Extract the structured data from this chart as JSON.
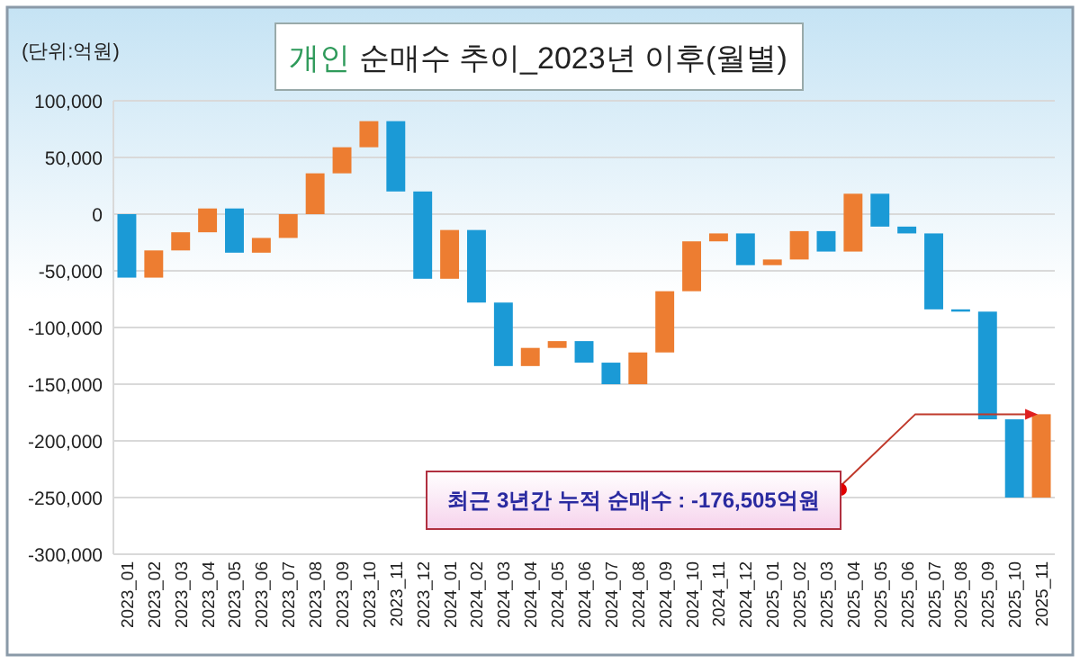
{
  "chart_data": {
    "type": "bar",
    "title": "개인 순매수 추이_2023년 이후(월별)",
    "ylabel": "(단위:억원)",
    "categories": [
      "2023_01",
      "2023_02",
      "2023_03",
      "2023_04",
      "2023_05",
      "2023_06",
      "2023_07",
      "2023_08",
      "2023_09",
      "2023_10",
      "2023_11",
      "2023_12",
      "2024_01",
      "2024_02",
      "2024_03",
      "2024_04",
      "2024_05",
      "2024_06",
      "2024_07",
      "2024_08",
      "2024_09",
      "2024_10",
      "2024_11",
      "2024_12",
      "2025_01",
      "2025_02",
      "2025_03",
      "2025_04",
      "2025_05",
      "2025_06",
      "2025_07",
      "2025_08",
      "2025_09",
      "2025_10",
      "2025_11"
    ],
    "values": [
      -56000,
      24000,
      16000,
      21000,
      -39000,
      13000,
      21000,
      36000,
      23000,
      23000,
      -62000,
      -77000,
      43000,
      -64000,
      -56000,
      16000,
      6000,
      -19000,
      -19000,
      28000,
      54000,
      44000,
      7000,
      -28000,
      5000,
      25000,
      -18000,
      51000,
      -29000,
      -6000,
      -67000,
      -2000,
      -95000,
      -69000,
      73500
    ],
    "base": [
      0,
      -56000,
      -32000,
      -16000,
      5000,
      -34000,
      -21000,
      0,
      36000,
      59000,
      82000,
      20000,
      -57000,
      -14000,
      -78000,
      -134000,
      -118000,
      -112000,
      -131000,
      -150000,
      -122000,
      -68000,
      -24000,
      -17000,
      -45000,
      -40000,
      -15000,
      -33000,
      18000,
      -11000,
      -17000,
      -84000,
      -86000,
      -181000,
      -250000
    ],
    "colors": [
      "#1b9ad6",
      "#ed7d31",
      "#ed7d31",
      "#ed7d31",
      "#1b9ad6",
      "#ed7d31",
      "#ed7d31",
      "#ed7d31",
      "#ed7d31",
      "#ed7d31",
      "#1b9ad6",
      "#1b9ad6",
      "#ed7d31",
      "#1b9ad6",
      "#1b9ad6",
      "#ed7d31",
      "#ed7d31",
      "#1b9ad6",
      "#1b9ad6",
      "#ed7d31",
      "#ed7d31",
      "#ed7d31",
      "#ed7d31",
      "#1b9ad6",
      "#ed7d31",
      "#ed7d31",
      "#1b9ad6",
      "#ed7d31",
      "#1b9ad6",
      "#1b9ad6",
      "#1b9ad6",
      "#1b9ad6",
      "#1b9ad6",
      "#1b9ad6",
      "#ed7d31"
    ],
    "ylim": [
      -300000,
      100000
    ],
    "yticks": [
      {
        "value": -300000,
        "label": "-300,000"
      },
      {
        "value": -250000,
        "label": "-250,000"
      },
      {
        "value": -200000,
        "label": "-200,000"
      },
      {
        "value": -150000,
        "label": "-150,000"
      },
      {
        "value": -100000,
        "label": "-100,000"
      },
      {
        "value": -50000,
        "label": "-50,000"
      },
      0,
      {
        "value": 50000,
        "label": "50,000"
      },
      {
        "value": 100000,
        "label": "100,000"
      }
    ],
    "grid": "y",
    "annotations": [
      {
        "text": "최근 3년간 누적 순매수 : -176,505억원",
        "x": "2025_11",
        "y": -176505
      }
    ]
  }
}
